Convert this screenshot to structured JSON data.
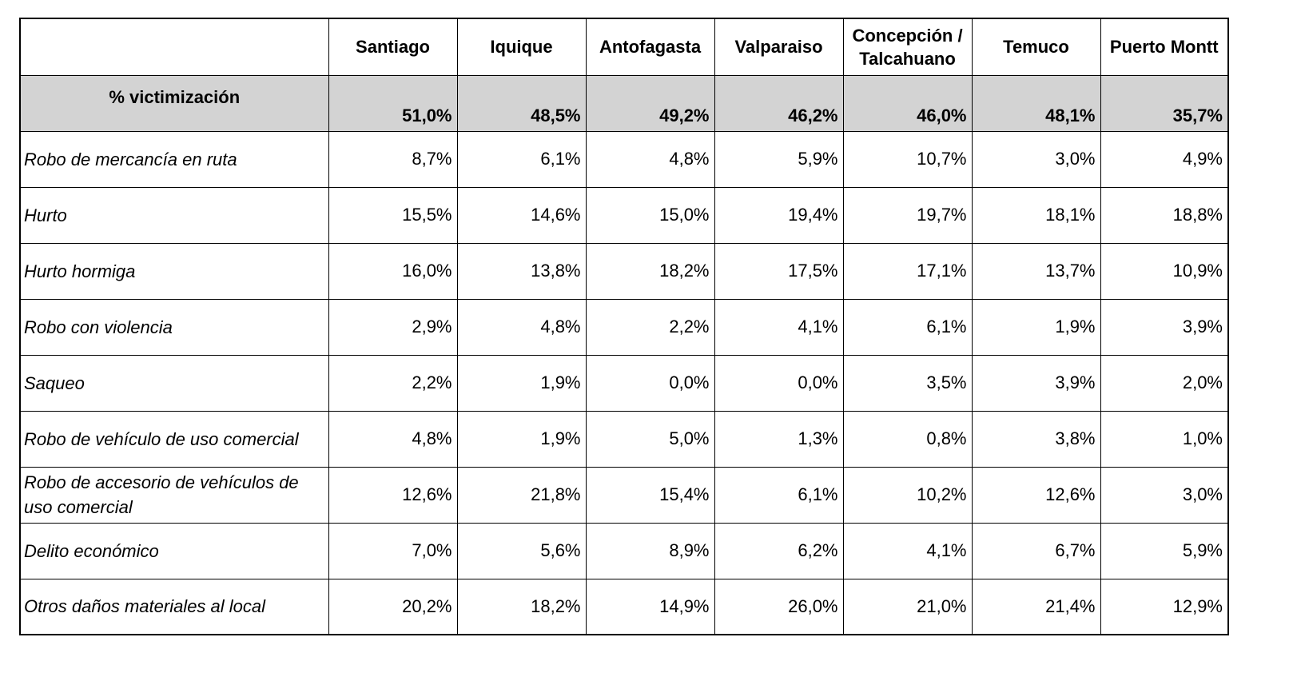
{
  "cities": [
    "Santiago",
    "Iquique",
    "Antofagasta",
    "Valparaiso",
    "Concepción / Talcahuano",
    "Temuco",
    "Puerto Montt"
  ],
  "total": {
    "label": "% victimización",
    "values": [
      "51,0%",
      "48,5%",
      "49,2%",
      "46,2%",
      "46,0%",
      "48,1%",
      "35,7%"
    ]
  },
  "rows": [
    {
      "label": "Robo de mercancía en ruta",
      "values": [
        "8,7%",
        "6,1%",
        "4,8%",
        "5,9%",
        "10,7%",
        "3,0%",
        "4,9%"
      ]
    },
    {
      "label": "Hurto",
      "values": [
        "15,5%",
        "14,6%",
        "15,0%",
        "19,4%",
        "19,7%",
        "18,1%",
        "18,8%"
      ]
    },
    {
      "label": "Hurto hormiga",
      "values": [
        "16,0%",
        "13,8%",
        "18,2%",
        "17,5%",
        "17,1%",
        "13,7%",
        "10,9%"
      ]
    },
    {
      "label": "Robo con violencia",
      "values": [
        "2,9%",
        "4,8%",
        "2,2%",
        "4,1%",
        "6,1%",
        "1,9%",
        "3,9%"
      ]
    },
    {
      "label": "Saqueo",
      "values": [
        "2,2%",
        "1,9%",
        "0,0%",
        "0,0%",
        "3,5%",
        "3,9%",
        "2,0%"
      ]
    },
    {
      "label": "Robo de vehículo de uso comercial",
      "values": [
        "4,8%",
        "1,9%",
        "5,0%",
        "1,3%",
        "0,8%",
        "3,8%",
        "1,0%"
      ]
    },
    {
      "label": "Robo de accesorio de vehículos de uso comercial",
      "values": [
        "12,6%",
        "21,8%",
        "15,4%",
        "6,1%",
        "10,2%",
        "12,6%",
        "3,0%"
      ]
    },
    {
      "label": "Delito económico",
      "values": [
        "7,0%",
        "5,6%",
        "8,9%",
        "6,2%",
        "4,1%",
        "6,7%",
        "5,9%"
      ]
    },
    {
      "label": "Otros daños materiales al local",
      "values": [
        "20,2%",
        "18,2%",
        "14,9%",
        "26,0%",
        "21,0%",
        "21,4%",
        "12,9%"
      ]
    }
  ]
}
